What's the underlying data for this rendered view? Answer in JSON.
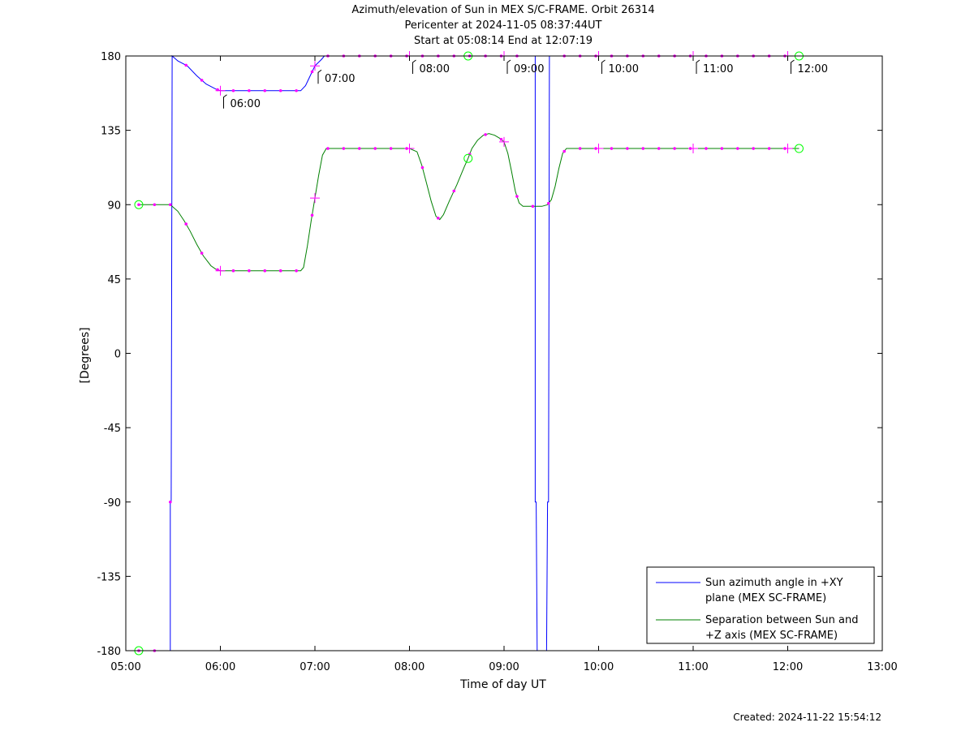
{
  "titles": [
    "Azimuth/elevation of Sun in MEX S/C-FRAME.  Orbit 26314",
    "Pericenter at 2024-11-05 08:37:44UT",
    "Start at 05:08:14 End at 12:07:19"
  ],
  "created": "Created: 2024-11-22 15:54:12",
  "colors": {
    "azimuth": "#0000ff",
    "separation": "#008000",
    "marker": "#ff00ff",
    "circle": "#00ff00"
  },
  "chart_data": {
    "type": "line",
    "xlabel": "Time of day UT",
    "ylabel": "[Degrees]",
    "xlim": [
      5.0,
      13.0
    ],
    "ylim": [
      -180,
      180
    ],
    "x_ticks": [
      "05:00",
      "06:00",
      "07:00",
      "08:00",
      "09:00",
      "10:00",
      "11:00",
      "12:00",
      "13:00"
    ],
    "y_ticks": [
      "180",
      "135",
      "90",
      "45",
      "0",
      "-45",
      "-90",
      "-135",
      "-180"
    ],
    "legend_position": "bottom-right",
    "hour_annotations": [
      "06:00",
      "07:00",
      "08:00",
      "09:00",
      "10:00",
      "11:00",
      "12:00"
    ],
    "series": [
      {
        "name": "Sun azimuth angle in +XY plane (MEX SC-FRAME)",
        "legend_lines": [
          "Sun azimuth angle in +XY",
          "plane (MEX SC-FRAME)"
        ],
        "points": [
          [
            5.137,
            -180
          ],
          [
            5.3,
            -180
          ],
          [
            5.47,
            -180
          ],
          [
            5.47,
            -90
          ],
          [
            5.48,
            -90
          ],
          [
            5.49,
            180
          ],
          [
            5.55,
            177
          ],
          [
            5.65,
            174
          ],
          [
            5.75,
            168
          ],
          [
            5.85,
            163
          ],
          [
            5.95,
            160
          ],
          [
            6.0,
            159
          ],
          [
            6.1,
            159
          ],
          [
            6.2,
            159
          ],
          [
            6.3,
            159
          ],
          [
            6.4,
            159
          ],
          [
            6.5,
            159
          ],
          [
            6.6,
            159
          ],
          [
            6.7,
            159
          ],
          [
            6.85,
            159
          ],
          [
            6.9,
            162
          ],
          [
            6.95,
            168
          ],
          [
            7.0,
            174
          ],
          [
            7.07,
            178
          ],
          [
            7.1,
            180
          ],
          [
            7.3,
            180
          ],
          [
            7.5,
            180
          ],
          [
            7.7,
            180
          ],
          [
            7.9,
            180
          ],
          [
            8.1,
            180
          ],
          [
            8.3,
            180
          ],
          [
            8.5,
            180
          ],
          [
            8.62,
            180
          ],
          [
            8.8,
            180
          ],
          [
            9.0,
            180
          ],
          [
            9.15,
            180
          ],
          [
            9.33,
            180
          ],
          [
            9.33,
            -90
          ],
          [
            9.34,
            -90
          ],
          [
            9.35,
            -180
          ],
          [
            9.45,
            -180
          ],
          [
            9.46,
            -90
          ],
          [
            9.47,
            -90
          ],
          [
            9.48,
            180
          ],
          [
            9.6,
            180
          ],
          [
            9.8,
            180
          ],
          [
            10.0,
            180
          ],
          [
            10.2,
            180
          ],
          [
            10.4,
            180
          ],
          [
            10.6,
            180
          ],
          [
            10.8,
            180
          ],
          [
            11.0,
            180
          ],
          [
            11.2,
            180
          ],
          [
            11.4,
            180
          ],
          [
            11.6,
            180
          ],
          [
            11.8,
            180
          ],
          [
            12.0,
            180
          ],
          [
            12.12,
            180
          ]
        ]
      },
      {
        "name": "Separation between Sun and +Z axis (MEX SC-FRAME)",
        "legend_lines": [
          "Separation between Sun and",
          "+Z axis (MEX SC-FRAME)"
        ],
        "points": [
          [
            5.137,
            90
          ],
          [
            5.3,
            90
          ],
          [
            5.47,
            90
          ],
          [
            5.55,
            86
          ],
          [
            5.62,
            80
          ],
          [
            5.68,
            74
          ],
          [
            5.75,
            66
          ],
          [
            5.82,
            59
          ],
          [
            5.9,
            53
          ],
          [
            5.95,
            51
          ],
          [
            6.0,
            50
          ],
          [
            6.2,
            50
          ],
          [
            6.4,
            50
          ],
          [
            6.6,
            50
          ],
          [
            6.85,
            50
          ],
          [
            6.88,
            52
          ],
          [
            6.92,
            65
          ],
          [
            6.96,
            80
          ],
          [
            7.0,
            94
          ],
          [
            7.04,
            108
          ],
          [
            7.08,
            120
          ],
          [
            7.12,
            124
          ],
          [
            7.2,
            124
          ],
          [
            7.4,
            124
          ],
          [
            7.6,
            124
          ],
          [
            7.8,
            124
          ],
          [
            8.0,
            124
          ],
          [
            8.08,
            122
          ],
          [
            8.13,
            114
          ],
          [
            8.18,
            103
          ],
          [
            8.23,
            92
          ],
          [
            8.28,
            83
          ],
          [
            8.32,
            81
          ],
          [
            8.36,
            84
          ],
          [
            8.42,
            92
          ],
          [
            8.5,
            102
          ],
          [
            8.58,
            113
          ],
          [
            8.62,
            118
          ],
          [
            8.66,
            124
          ],
          [
            8.72,
            129
          ],
          [
            8.78,
            132
          ],
          [
            8.84,
            133
          ],
          [
            8.9,
            132
          ],
          [
            8.96,
            130
          ],
          [
            9.0,
            128
          ],
          [
            9.04,
            121
          ],
          [
            9.08,
            110
          ],
          [
            9.12,
            98
          ],
          [
            9.16,
            91
          ],
          [
            9.2,
            89
          ],
          [
            9.3,
            89
          ],
          [
            9.4,
            89
          ],
          [
            9.46,
            90
          ],
          [
            9.5,
            93
          ],
          [
            9.54,
            101
          ],
          [
            9.58,
            112
          ],
          [
            9.62,
            121
          ],
          [
            9.66,
            124
          ],
          [
            9.8,
            124
          ],
          [
            10.0,
            124
          ],
          [
            10.2,
            124
          ],
          [
            10.4,
            124
          ],
          [
            10.6,
            124
          ],
          [
            10.8,
            124
          ],
          [
            11.0,
            124
          ],
          [
            11.2,
            124
          ],
          [
            11.4,
            124
          ],
          [
            11.6,
            124
          ],
          [
            11.8,
            124
          ],
          [
            12.0,
            124
          ],
          [
            12.12,
            124
          ]
        ]
      }
    ]
  }
}
